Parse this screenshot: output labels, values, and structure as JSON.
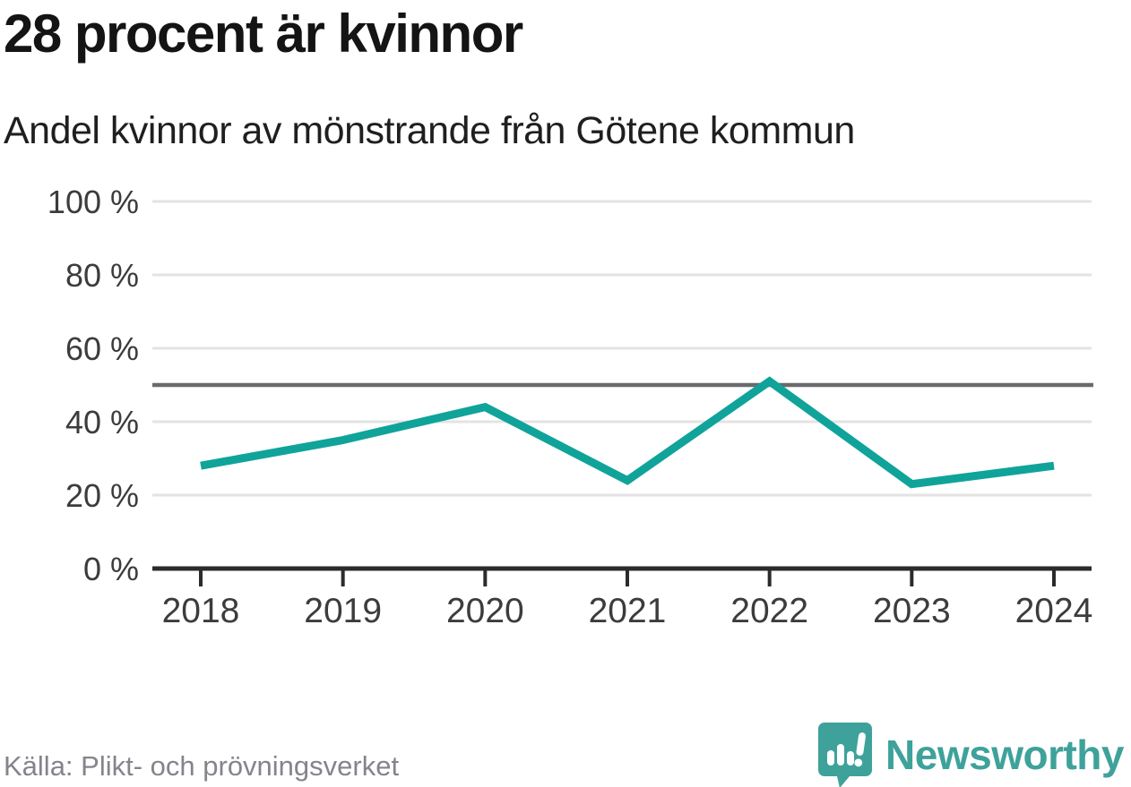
{
  "header": {
    "title": "28 procent är kvinnor",
    "subtitle": "Andel kvinnor av mönstrande från Götene kommun"
  },
  "chart_data": {
    "type": "line",
    "title": "28 procent är kvinnor",
    "subtitle": "Andel kvinnor av mönstrande från Götene kommun",
    "x": [
      "2018",
      "2019",
      "2020",
      "2021",
      "2022",
      "2023",
      "2024"
    ],
    "series": [
      {
        "name": "Andel kvinnor av mönstrande",
        "values": [
          28,
          35,
          44,
          24,
          51,
          23,
          28
        ]
      }
    ],
    "unit": "percent",
    "xlabel": "",
    "ylabel": "",
    "ylim": [
      0,
      100
    ],
    "yticks": [
      0,
      20,
      40,
      60,
      80,
      100
    ],
    "ytick_suffix": " %",
    "reference_line_y": 50,
    "grid": true,
    "legend": "none",
    "colors": {
      "line": "#10a39a",
      "gridline": "#e3e3e3",
      "reference_line": "#6a6a6e",
      "axis": "#2b2b2b",
      "tick_label": "#3c3c3c"
    }
  },
  "footer": {
    "source": "Källa: Plikt- och prövningsverket",
    "brand": "Newsworthy",
    "brand_color": "#3ea29b",
    "logo_icon": "newsworthy-speech-bubble-bars-icon"
  }
}
